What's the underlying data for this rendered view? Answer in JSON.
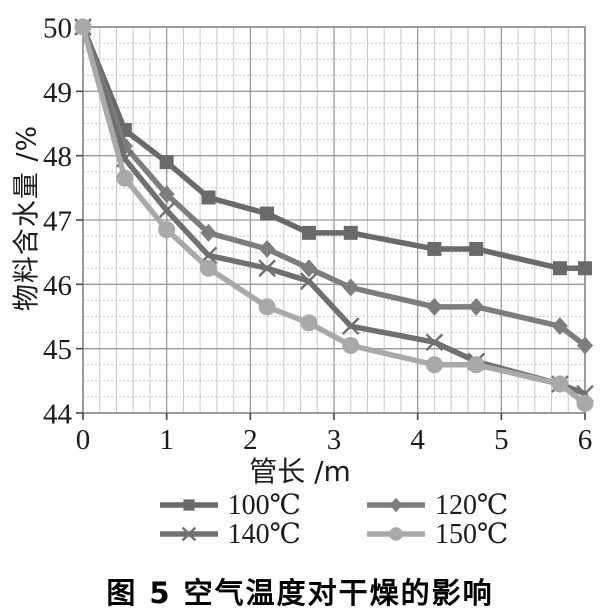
{
  "figure": {
    "caption": "图 5  空气温度对干燥的影响"
  },
  "chart_data": {
    "type": "line",
    "title": "",
    "xlabel": "管长 /m",
    "ylabel": "物料含水量 /%",
    "xlim": [
      0,
      6
    ],
    "ylim": [
      44,
      50
    ],
    "xticks": [
      0,
      1,
      2,
      3,
      4,
      5,
      6
    ],
    "yticks": [
      44,
      45,
      46,
      47,
      48,
      49,
      50
    ],
    "minor_x_step": 0.2,
    "minor_y_step": 0.25,
    "grid": true,
    "legend_position": "bottom",
    "x": [
      0,
      0.5,
      1,
      1.5,
      2.2,
      2.7,
      3.2,
      4.2,
      4.7,
      5.7,
      6
    ],
    "series": [
      {
        "name": "100℃",
        "marker": "square",
        "color": "#6a6a6a",
        "values": [
          50,
          48.4,
          47.9,
          47.35,
          47.1,
          46.8,
          46.8,
          46.55,
          46.55,
          46.25,
          46.25
        ]
      },
      {
        "name": "120℃",
        "marker": "diamond",
        "color": "#7d7d7d",
        "values": [
          50,
          48.15,
          47.4,
          46.8,
          46.55,
          46.25,
          45.95,
          45.65,
          45.65,
          45.35,
          45.05
        ]
      },
      {
        "name": "140℃",
        "marker": "cross",
        "color": "#707070",
        "values": [
          50,
          47.95,
          47.15,
          46.45,
          46.25,
          46.05,
          45.35,
          45.1,
          44.8,
          44.45,
          44.3
        ]
      },
      {
        "name": "150℃",
        "marker": "circle",
        "color": "#a9a9a9",
        "values": [
          50,
          47.65,
          46.85,
          46.25,
          45.65,
          45.4,
          45.05,
          44.75,
          44.75,
          44.45,
          44.15
        ]
      }
    ],
    "colors": {
      "grid_minor": "#c9c9c9",
      "grid_major": "#9a9a9a",
      "border": "#8a8a8a",
      "tick_text": "#1c1c1c"
    }
  }
}
